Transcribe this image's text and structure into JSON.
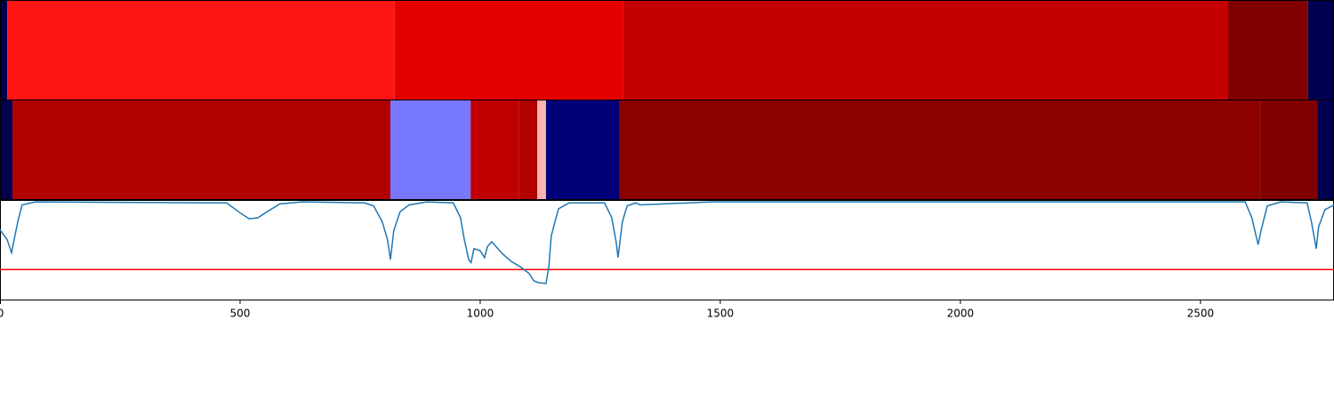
{
  "chart_data": {
    "type": "line",
    "xlim": [
      0,
      2778
    ],
    "xticks": [
      0,
      500,
      1000,
      1500,
      2000,
      2500
    ],
    "ylim": [
      0,
      1
    ],
    "color": "#1f77b4",
    "threshold": 0.31,
    "threshold_color": "#ff0000",
    "bands": [
      {
        "segments": [
          {
            "start": 0,
            "end": 15,
            "color": "#000050"
          },
          {
            "start": 15,
            "end": 822,
            "color": "#ff1414"
          },
          {
            "start": 822,
            "end": 1298,
            "color": "#e50000"
          },
          {
            "start": 1298,
            "end": 2556,
            "color": "#c40000"
          },
          {
            "start": 2556,
            "end": 2724,
            "color": "#800000"
          },
          {
            "start": 2724,
            "end": 2778,
            "color": "#000050"
          }
        ]
      },
      {
        "segments": [
          {
            "start": 0,
            "end": 26,
            "color": "#000050"
          },
          {
            "start": 26,
            "end": 813,
            "color": "#b00000"
          },
          {
            "start": 813,
            "end": 980,
            "color": "#7878ff"
          },
          {
            "start": 980,
            "end": 1081,
            "color": "#c00000"
          },
          {
            "start": 1081,
            "end": 1119,
            "color": "#b00000"
          },
          {
            "start": 1119,
            "end": 1137,
            "color": "#ffb4b4"
          },
          {
            "start": 1137,
            "end": 1289,
            "color": "#000078"
          },
          {
            "start": 1289,
            "end": 2626,
            "color": "#8b0000"
          },
          {
            "start": 2626,
            "end": 2743,
            "color": "#800000"
          },
          {
            "start": 2743,
            "end": 2778,
            "color": "#000050"
          }
        ]
      }
    ],
    "x": [
      0,
      15,
      24,
      37,
      46,
      74,
      472,
      500,
      519,
      537,
      556,
      583,
      630,
      759,
      778,
      796,
      807,
      813,
      820,
      833,
      852,
      889,
      944,
      959,
      967,
      976,
      981,
      987,
      1000,
      1009,
      1015,
      1024,
      1046,
      1065,
      1083,
      1102,
      1111,
      1120,
      1137,
      1143,
      1148,
      1163,
      1185,
      1259,
      1274,
      1283,
      1287,
      1296,
      1306,
      1324,
      1333,
      1481,
      2593,
      2607,
      2620,
      2626,
      2639,
      2667,
      2722,
      2731,
      2741,
      2746,
      2759,
      2778
    ],
    "values": [
      0.71,
      0.61,
      0.48,
      0.79,
      0.96,
      0.99,
      0.98,
      0.88,
      0.82,
      0.83,
      0.89,
      0.97,
      0.99,
      0.98,
      0.95,
      0.79,
      0.61,
      0.41,
      0.7,
      0.89,
      0.96,
      0.99,
      0.98,
      0.83,
      0.61,
      0.41,
      0.38,
      0.52,
      0.5,
      0.43,
      0.54,
      0.59,
      0.47,
      0.39,
      0.34,
      0.27,
      0.2,
      0.18,
      0.17,
      0.34,
      0.65,
      0.92,
      0.98,
      0.98,
      0.83,
      0.59,
      0.43,
      0.79,
      0.95,
      0.98,
      0.96,
      0.99,
      0.99,
      0.83,
      0.56,
      0.7,
      0.95,
      0.99,
      0.98,
      0.79,
      0.52,
      0.74,
      0.91,
      0.96
    ]
  }
}
